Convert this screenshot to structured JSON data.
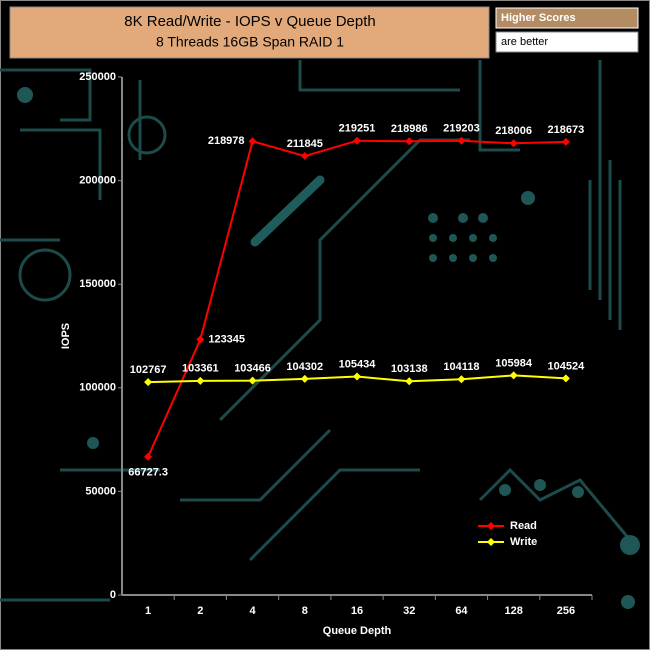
{
  "chart_data": {
    "type": "line",
    "title": "8K Read/Write - IOPS v Queue Depth",
    "subtitle": "8 Threads 16GB Span RAID 1",
    "badge": [
      "Higher Scores",
      "are better"
    ],
    "x_label": "Queue Depth",
    "y_label": "IOPS",
    "categories": [
      "1",
      "2",
      "4",
      "8",
      "16",
      "32",
      "64",
      "128",
      "256"
    ],
    "series": [
      {
        "name": "Read",
        "color": "#ff0000",
        "values": [
          66727.3,
          123345,
          218978,
          211845,
          219251,
          218986,
          219203,
          218006,
          218673
        ]
      },
      {
        "name": "Write",
        "color": "#ffff00",
        "values": [
          102767,
          103361,
          103466,
          104302,
          105434,
          103138,
          104118,
          105984,
          104524
        ]
      }
    ],
    "ylim": [
      0,
      250000
    ],
    "yticks": [
      0,
      50000,
      100000,
      150000,
      200000,
      250000
    ],
    "grid": false,
    "legend": "lower right"
  }
}
